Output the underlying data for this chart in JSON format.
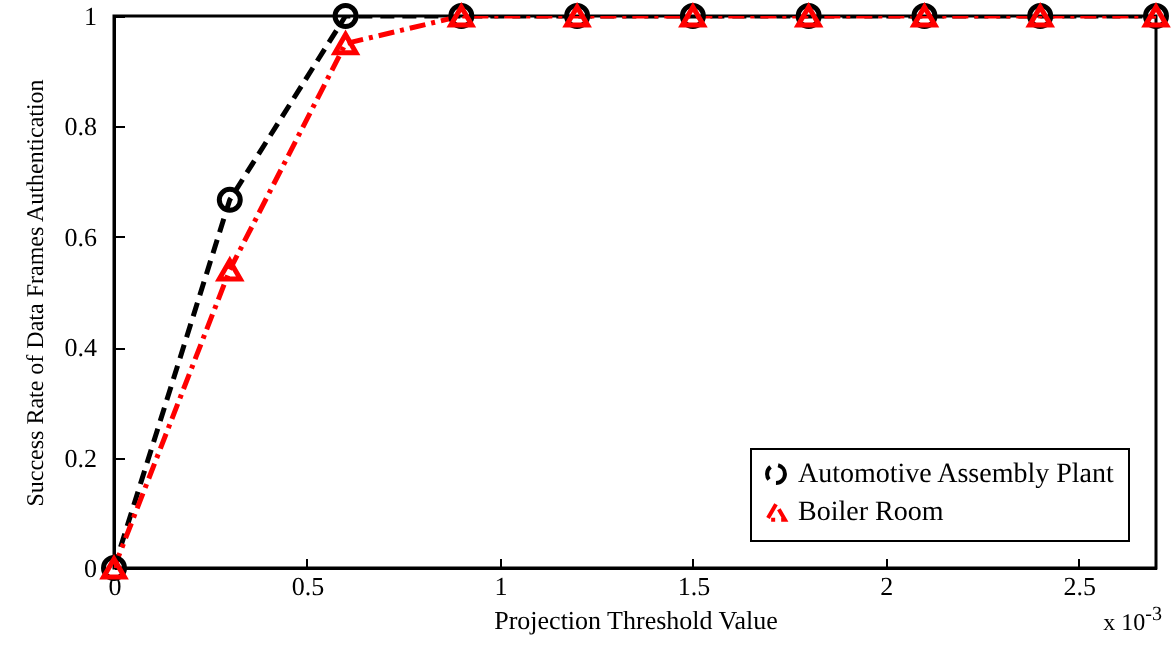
{
  "chart_data": {
    "type": "line",
    "xlabel": "Projection Threshold Value",
    "ylabel": "Success Rate of Data Frames Authentication",
    "x": [
      0,
      0.3,
      0.6,
      0.9,
      1.2,
      1.5,
      1.8,
      2.1,
      2.4,
      2.7
    ],
    "series": [
      {
        "name": "Automotive Assembly Plant",
        "color": "#000000",
        "marker": "circle",
        "line_style": "dashed",
        "values": [
          0,
          0.667,
          1,
          1,
          1,
          1,
          1,
          1,
          1,
          1
        ]
      },
      {
        "name": "Boiler Room",
        "color": "#ff0000",
        "marker": "triangle",
        "line_style": "dashdot",
        "values": [
          0,
          0.54,
          0.95,
          1,
          1,
          1,
          1,
          1,
          1,
          1
        ]
      }
    ],
    "xlim": [
      0,
      2.7
    ],
    "xticks": [
      0,
      0.5,
      1,
      1.5,
      2,
      2.5
    ],
    "ylim": [
      0,
      1
    ],
    "yticks": [
      0,
      0.2,
      0.4,
      0.6,
      0.8,
      1
    ],
    "grid": false,
    "legend": "bottom right",
    "annotations": [
      "x 10$^{-3}$"
    ]
  }
}
